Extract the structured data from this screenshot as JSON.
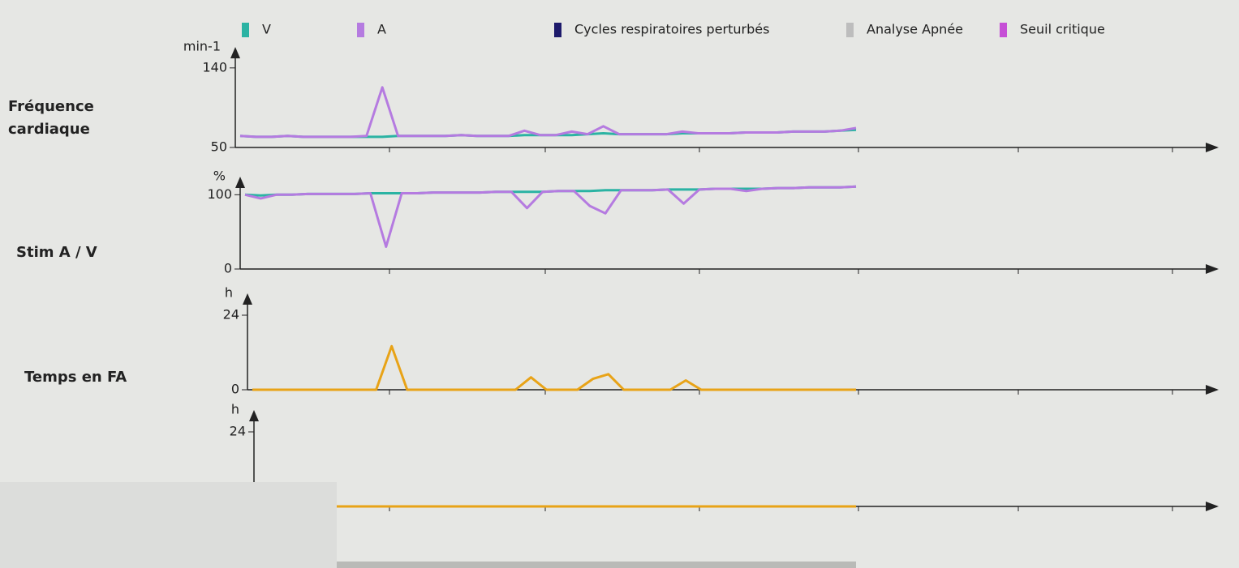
{
  "legend": [
    {
      "name": "V",
      "color": "#2bb3a3"
    },
    {
      "name": "A",
      "color": "#b57be0"
    },
    {
      "name": "Cycles respiratoires perturbés",
      "color": "#1d1a6b"
    },
    {
      "name": "Analyse Apnée",
      "color": "#bdbdbd"
    },
    {
      "name": "Seuil critique",
      "color": "#c64fd6"
    }
  ],
  "chart_data": [
    {
      "type": "line",
      "y_label": "Fréquence cardiaque",
      "unit": "min-1",
      "ylim": [
        50,
        160
      ],
      "yticks": [
        50,
        140
      ],
      "series": [
        {
          "color": "#2bb3a3",
          "values": [
            63,
            62,
            62,
            63,
            62,
            62,
            62,
            62,
            62,
            62,
            63,
            63,
            63,
            63,
            64,
            63,
            63,
            63,
            64,
            64,
            64,
            64,
            65,
            66,
            65,
            65,
            65,
            65,
            66,
            66,
            66,
            66,
            67,
            67,
            67,
            68,
            68,
            68,
            69,
            70
          ]
        },
        {
          "color": "#b57be0",
          "values": [
            63,
            62,
            62,
            63,
            62,
            62,
            62,
            62,
            63,
            118,
            63,
            63,
            63,
            63,
            64,
            63,
            63,
            63,
            69,
            64,
            64,
            68,
            65,
            74,
            65,
            65,
            65,
            65,
            68,
            66,
            66,
            66,
            67,
            67,
            67,
            68,
            68,
            68,
            69,
            72
          ]
        }
      ]
    },
    {
      "type": "line",
      "y_label": "Stim A / V",
      "unit": "%",
      "ylim": [
        0,
        120
      ],
      "yticks": [
        0,
        100
      ],
      "series": [
        {
          "color": "#2bb3a3",
          "values": [
            100,
            99,
            100,
            100,
            101,
            101,
            101,
            101,
            102,
            102,
            102,
            102,
            103,
            103,
            103,
            103,
            104,
            104,
            104,
            104,
            105,
            105,
            105,
            106,
            106,
            106,
            106,
            107,
            107,
            107,
            108,
            108,
            108,
            108,
            109,
            109,
            110,
            110,
            110,
            111
          ]
        },
        {
          "color": "#b57be0",
          "values": [
            100,
            95,
            100,
            100,
            101,
            101,
            101,
            101,
            102,
            30,
            102,
            102,
            103,
            103,
            103,
            103,
            104,
            104,
            82,
            104,
            105,
            105,
            85,
            75,
            106,
            106,
            106,
            107,
            88,
            107,
            108,
            108,
            105,
            108,
            109,
            109,
            110,
            110,
            110,
            111
          ]
        }
      ]
    },
    {
      "type": "line",
      "y_label": "Temps en FA",
      "unit": "h",
      "ylim": [
        0,
        30
      ],
      "yticks": [
        0,
        24
      ],
      "series": [
        {
          "color": "#e8a317",
          "values": [
            0,
            0,
            0,
            0,
            0,
            0,
            0,
            0,
            0,
            14,
            0,
            0,
            0,
            0,
            0,
            0,
            0,
            0,
            4,
            0,
            0,
            0,
            3.5,
            5,
            0,
            0,
            0,
            0,
            3,
            0,
            0,
            0,
            0,
            0,
            0,
            0,
            0,
            0,
            0,
            0
          ]
        }
      ]
    },
    {
      "type": "line",
      "unit": "h",
      "ylim": [
        0,
        30
      ],
      "yticks": [
        24
      ],
      "series": [
        {
          "color": "#e8a317",
          "values": [
            0,
            0,
            0,
            0,
            0,
            0,
            0,
            0,
            0,
            0,
            0,
            0,
            0,
            0,
            0,
            0,
            0,
            0,
            0,
            0,
            0,
            0,
            0,
            0,
            0,
            0,
            0,
            0,
            0,
            0,
            0,
            0,
            0,
            0,
            0,
            0,
            0,
            0,
            0,
            0
          ]
        }
      ]
    }
  ]
}
